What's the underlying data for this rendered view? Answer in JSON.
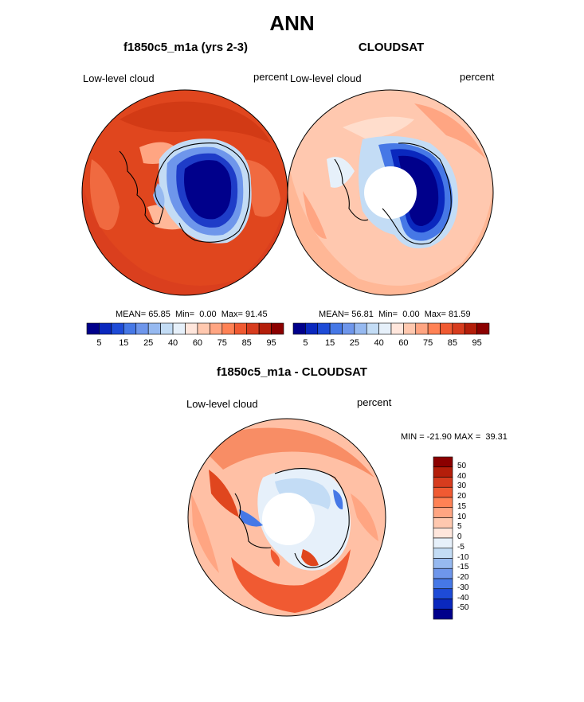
{
  "title": "ANN",
  "panels": {
    "left": {
      "title": "f1850c5_m1a (yrs 2-3)",
      "label": "Low-level cloud",
      "units": "percent",
      "stats": {
        "mean_label": "MEAN=",
        "mean": "65.85",
        "min_label": "Min=",
        "min": "0.00",
        "max_label": "Max=",
        "max": "91.45"
      }
    },
    "right": {
      "title": "CLOUDSAT",
      "label": "Low-level cloud",
      "units": "percent",
      "stats": {
        "mean_label": "MEAN=",
        "mean": "56.81",
        "min_label": "Min=",
        "min": "0.00",
        "max_label": "Max=",
        "max": "81.59"
      }
    },
    "bottom": {
      "title": "f1850c5_m1a - CLOUDSAT",
      "label": "Low-level cloud",
      "units": "percent",
      "minmax": "MIN = -21.90 MAX =  39.31"
    }
  },
  "chart_data": [
    {
      "type": "heatmap",
      "title": "f1850c5_m1a (yrs 2-3)",
      "field": "Low-level cloud",
      "units": "percent",
      "projection": "south polar stereographic",
      "mean": 65.85,
      "min": 0.0,
      "max": 91.45,
      "colorbar": {
        "tick_labels": [
          "5",
          "15",
          "25",
          "40",
          "60",
          "75",
          "85",
          "95"
        ],
        "colors": [
          "#00008B",
          "#0A28BE",
          "#1E4BD7",
          "#4678E6",
          "#6E96EB",
          "#96B9F0",
          "#C3DCF5",
          "#E6F0FA",
          "#FFE6DC",
          "#FFC8AF",
          "#FFA582",
          "#FF8255",
          "#F05A32",
          "#D73C1E",
          "#B41E0A",
          "#8B0000"
        ]
      }
    },
    {
      "type": "heatmap",
      "title": "CLOUDSAT",
      "field": "Low-level cloud",
      "units": "percent",
      "projection": "south polar stereographic",
      "mean": 56.81,
      "min": 0.0,
      "max": 81.59,
      "colorbar": {
        "tick_labels": [
          "5",
          "15",
          "25",
          "40",
          "60",
          "75",
          "85",
          "95"
        ],
        "colors": [
          "#00008B",
          "#0A28BE",
          "#1E4BD7",
          "#4678E6",
          "#6E96EB",
          "#96B9F0",
          "#C3DCF5",
          "#E6F0FA",
          "#FFE6DC",
          "#FFC8AF",
          "#FFA582",
          "#FF8255",
          "#F05A32",
          "#D73C1E",
          "#B41E0A",
          "#8B0000"
        ]
      }
    },
    {
      "type": "heatmap",
      "title": "f1850c5_m1a - CLOUDSAT",
      "field": "Low-level cloud",
      "units": "percent",
      "projection": "south polar stereographic",
      "min": -21.9,
      "max": 39.31,
      "colorbar": {
        "orientation": "vertical",
        "tick_labels": [
          "50",
          "40",
          "30",
          "20",
          "15",
          "10",
          "5",
          "0",
          "-5",
          "-10",
          "-15",
          "-20",
          "-30",
          "-40",
          "-50"
        ],
        "colors": [
          "#8B0000",
          "#B41E0A",
          "#D73C1E",
          "#F05A32",
          "#FF8255",
          "#FFA582",
          "#FFC8AF",
          "#FFE6DC",
          "#E6F0FA",
          "#C3DCF5",
          "#96B9F0",
          "#6E96EB",
          "#4678E6",
          "#1E4BD7",
          "#0A28BE",
          "#00008B"
        ]
      }
    }
  ]
}
